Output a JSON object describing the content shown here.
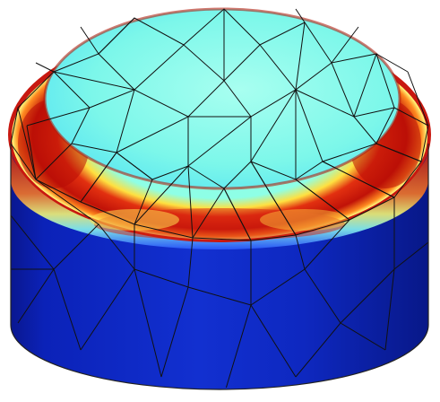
{
  "scene": {
    "subject": "cylinder",
    "background_color": "#ffffff",
    "mesh_line_color": "#111111",
    "colormap": [
      "#0a1fb0",
      "#1f5bff",
      "#3fd0ff",
      "#8fffe8",
      "#ffff66",
      "#ff9a2a",
      "#d81e10",
      "#8a0505"
    ],
    "top_face_color": "#7dfbe9",
    "side_color": "#0b22b4"
  }
}
